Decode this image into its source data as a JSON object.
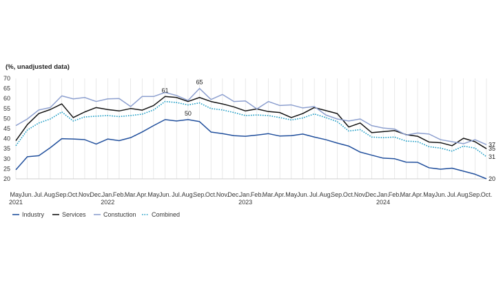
{
  "chart_data": {
    "type": "line",
    "ylabel": "(%, unadjusted data)",
    "ylim": [
      20,
      70
    ],
    "yticks": [
      20,
      25,
      30,
      35,
      40,
      45,
      50,
      55,
      60,
      65,
      70
    ],
    "grid": "vertical",
    "legend": "bottom-left",
    "x": [
      "May",
      "Jun.",
      "Jul.",
      "Aug.",
      "Sep.",
      "Oct.",
      "Nov.",
      "Dec.",
      "Jan.",
      "Feb.",
      "Mar.",
      "Apr.",
      "May",
      "Jun.",
      "Jul.",
      "Aug.",
      "Sep.",
      "Oct.",
      "Nov.",
      "Dec.",
      "Jan.",
      "Feb.",
      "Mar.",
      "Apr.",
      "May",
      "Jun.",
      "Jul.",
      "Aug.",
      "Sep.",
      "Oct.",
      "Nov.",
      "Dec.",
      "Jan.",
      "Feb.",
      "Mar.",
      "Apr.",
      "May",
      "Jun.",
      "Jul.",
      "Aug.",
      "Sep.",
      "Oct."
    ],
    "years": [
      {
        "label": "2021",
        "index": 0
      },
      {
        "label": "2022",
        "index": 8
      },
      {
        "label": "2023",
        "index": 20
      },
      {
        "label": "2024",
        "index": 32
      }
    ],
    "series": [
      {
        "name": "Industry",
        "color": "#1f4e9c",
        "dash": "solid",
        "values": [
          24.5,
          31,
          31.5,
          35.5,
          40,
          39.8,
          39.5,
          37.3,
          39.8,
          39,
          40.5,
          43.3,
          46.5,
          49.5,
          48.8,
          49.5,
          48.5,
          43.3,
          42.5,
          41.5,
          41.2,
          41.8,
          42.5,
          41.3,
          41.5,
          42.3,
          40.8,
          39.5,
          37.8,
          36.3,
          33.3,
          31.8,
          30.3,
          30,
          28.3,
          28.2,
          25.5,
          24.8,
          25.3,
          23.8,
          22.3,
          20
        ]
      },
      {
        "name": "Services",
        "color": "#111111",
        "dash": "solid",
        "values": [
          39,
          47,
          52.5,
          54.5,
          57.3,
          50.5,
          53.3,
          55.5,
          54.5,
          53.8,
          55,
          54.2,
          56.5,
          61,
          60.5,
          58.5,
          60.5,
          58.5,
          57.3,
          55.8,
          53.8,
          54.8,
          53.5,
          53,
          50.5,
          52.5,
          55.5,
          54,
          52.5,
          45.8,
          47.8,
          43,
          43.5,
          44,
          42,
          41.2,
          38.3,
          38,
          36.5,
          40.2,
          38.5,
          35
        ]
      },
      {
        "name": "Constuction",
        "color": "#8c9fcf",
        "dash": "solid",
        "values": [
          46.5,
          49.8,
          54.3,
          55.5,
          61.3,
          59.8,
          60.5,
          58.5,
          59.8,
          60,
          56,
          61,
          61,
          63,
          61.5,
          59,
          65,
          59.5,
          62,
          58.5,
          58.8,
          54.8,
          58.5,
          56.5,
          56.8,
          55.3,
          56,
          51.8,
          49.8,
          48.8,
          49.8,
          46.5,
          45.3,
          44.8,
          41.8,
          42.8,
          42.3,
          39.5,
          38.5,
          37.5,
          39.5,
          37
        ]
      },
      {
        "name": "Combined",
        "color": "#1a9bc4",
        "dash": "dotted",
        "values": [
          36.5,
          44.3,
          47.8,
          49.8,
          53.3,
          48.8,
          50.8,
          51.2,
          51.5,
          51,
          51.5,
          52.2,
          54.3,
          58.5,
          58,
          56.8,
          57.8,
          55,
          54.3,
          53,
          51.5,
          51.8,
          51.5,
          50.5,
          49.3,
          50.3,
          52.3,
          50.5,
          48.5,
          43.8,
          44.5,
          40.8,
          40.5,
          40.8,
          38.8,
          38.5,
          36,
          35.3,
          33.8,
          36.3,
          35.3,
          31
        ]
      }
    ],
    "annotations": [
      {
        "text": "61",
        "series": "Services",
        "index": 13
      },
      {
        "text": "65",
        "series": "Constuction",
        "index": 16
      },
      {
        "text": "50",
        "series": "Industry",
        "index": 15
      },
      {
        "text": "37",
        "series": "Constuction",
        "index": 41
      },
      {
        "text": "35",
        "series": "Services",
        "index": 41
      },
      {
        "text": "31",
        "series": "Combined",
        "index": 41
      },
      {
        "text": "20",
        "series": "Industry",
        "index": 41
      }
    ]
  }
}
